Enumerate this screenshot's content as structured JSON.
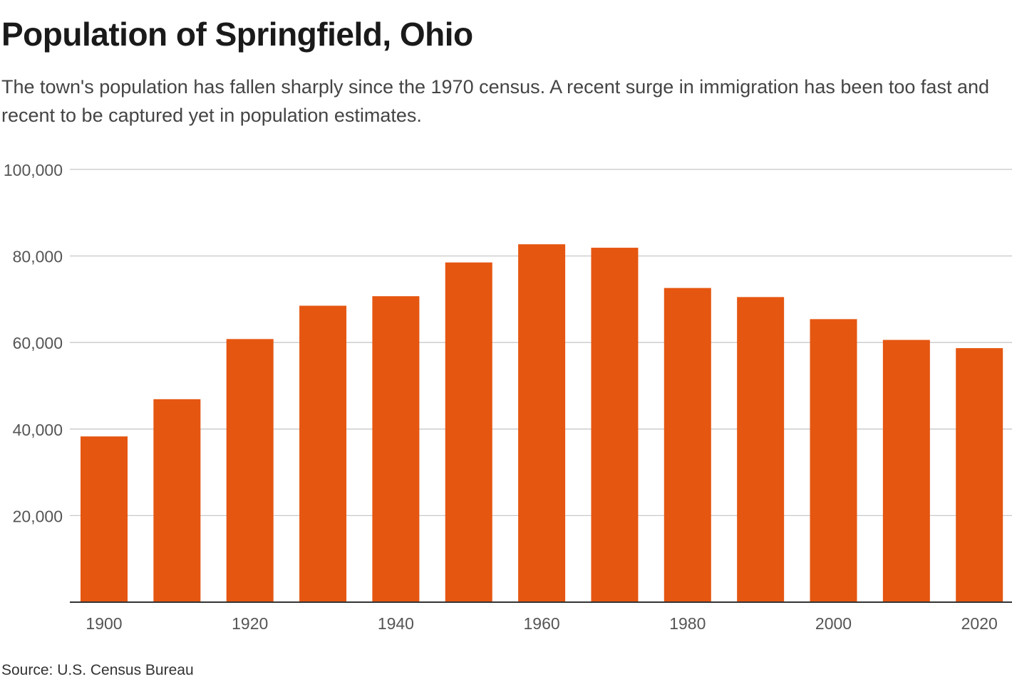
{
  "header": {
    "title": "Population of Springfield, Ohio",
    "subtitle": "The town's population has fallen sharply since the 1970 census. A recent surge in immigration has been too fast and recent to be captured yet in population estimates."
  },
  "footer": {
    "source": "Source: U.S. Census Bureau"
  },
  "colors": {
    "bar": "#e55611",
    "grid": "#c8c8c8",
    "axis": "#333333",
    "tick_label": "#555555"
  },
  "chart_data": {
    "type": "bar",
    "categories": [
      "1900",
      "1910",
      "1920",
      "1930",
      "1940",
      "1950",
      "1960",
      "1970",
      "1980",
      "1990",
      "2000",
      "2010",
      "2020"
    ],
    "values": [
      38300,
      46900,
      60800,
      68500,
      70700,
      78500,
      82700,
      81900,
      72600,
      70500,
      65400,
      60600,
      58700
    ],
    "x_tick_labels": [
      "1900",
      "1920",
      "1940",
      "1960",
      "1980",
      "2000",
      "2020"
    ],
    "y_ticks": [
      "20,000",
      "40,000",
      "60,000",
      "80,000",
      "100,000"
    ],
    "y_tick_values": [
      20000,
      40000,
      60000,
      80000,
      100000
    ],
    "ylim": [
      0,
      100000
    ],
    "grid": true,
    "title": "Population of Springfield, Ohio",
    "xlabel": "",
    "ylabel": ""
  }
}
